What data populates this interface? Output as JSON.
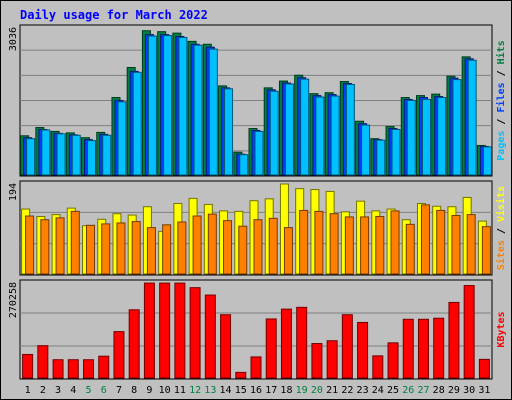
{
  "title": "Daily usage for March 2022",
  "chart_data": {
    "type": "bar",
    "title": "Daily usage for March 2022",
    "days": [
      "1",
      "2",
      "3",
      "4",
      "5",
      "6",
      "7",
      "8",
      "9",
      "10",
      "11",
      "12",
      "13",
      "14",
      "15",
      "16",
      "17",
      "18",
      "19",
      "20",
      "21",
      "22",
      "23",
      "24",
      "25",
      "26",
      "27",
      "28",
      "29",
      "30",
      "31"
    ],
    "weekend_days": [
      "5",
      "6",
      "12",
      "13",
      "19",
      "20",
      "26",
      "27"
    ],
    "colors": {
      "hits": "#008040",
      "files": "#0040ff",
      "pages": "#00c0ff",
      "visits": "#ffff00",
      "sites": "#ff8000",
      "kbytes": "#ff0000",
      "title": "#0000ff",
      "weekend_label": "#008040",
      "weekday_label": "#000000",
      "panel_bg": "#c0c0c0"
    },
    "panels": [
      {
        "id": "hits-files-pages",
        "max_label": "3036",
        "max_value": 3036,
        "right_labels": [
          "Pages",
          "Files",
          "Hits"
        ],
        "series": [
          {
            "name": "Hits",
            "values": [
              810,
              980,
              900,
              870,
              770,
              880,
              1600,
              2220,
              2980,
              2960,
              2930,
              2760,
              2700,
              1840,
              470,
              960,
              1800,
              1940,
              2060,
              1680,
              1700,
              1930,
              1110,
              750,
              1000,
              1600,
              1640,
              1670,
              2040,
              2440,
              610
            ]
          },
          {
            "name": "Files",
            "values": [
              770,
              940,
              860,
              830,
              730,
              840,
              1540,
              2140,
              2900,
              2900,
              2860,
              2700,
              2640,
              1800,
              430,
              920,
              1760,
              1900,
              2010,
              1640,
              1660,
              1890,
              1060,
              730,
              960,
              1560,
              1600,
              1620,
              2000,
              2400,
              590
            ]
          },
          {
            "name": "Pages",
            "values": [
              750,
              930,
              850,
              820,
              710,
              820,
              1510,
              2120,
              2870,
              2880,
              2840,
              2680,
              2600,
              1780,
              420,
              900,
              1730,
              1880,
              1980,
              1610,
              1630,
              1870,
              1030,
              720,
              940,
              1540,
              1560,
              1600,
              1970,
              2370,
              580
            ]
          }
        ]
      },
      {
        "id": "visits-sites",
        "max_label": "194",
        "max_value": 194,
        "right_labels": [
          "Sites",
          "Visits"
        ],
        "series": [
          {
            "name": "Visits",
            "values": [
              140,
              124,
              128,
              142,
              104,
              118,
              130,
              127,
              145,
              92,
              152,
              163,
              150,
              136,
              135,
              158,
              162,
              194,
              184,
              182,
              178,
              134,
              157,
              136,
              140,
              117,
              152,
              146,
              145,
              165,
              114
            ]
          },
          {
            "name": "Sites",
            "values": [
              125,
              117,
              121,
              135,
              105,
              108,
              110,
              113,
              100,
              106,
              112,
              125,
              129,
              115,
              103,
              117,
              120,
              100,
              137,
              135,
              130,
              123,
              123,
              124,
              136,
              107,
              149,
              137,
              126,
              128,
              102
            ]
          }
        ]
      },
      {
        "id": "kbytes",
        "max_label": "270258",
        "max_value": 270258,
        "right_labels": [
          "KBytes"
        ],
        "series": [
          {
            "name": "KBytes",
            "values": [
              67000,
              92000,
              52000,
              52000,
              52000,
              62000,
              132000,
              194000,
              270000,
              270000,
              270000,
              257000,
              236000,
              180000,
              16000,
              60000,
              168000,
              196000,
              201000,
              98000,
              106000,
              180000,
              158000,
              63000,
              100000,
              167000,
              167000,
              170000,
              215000,
              263000,
              53000
            ]
          }
        ]
      }
    ]
  }
}
